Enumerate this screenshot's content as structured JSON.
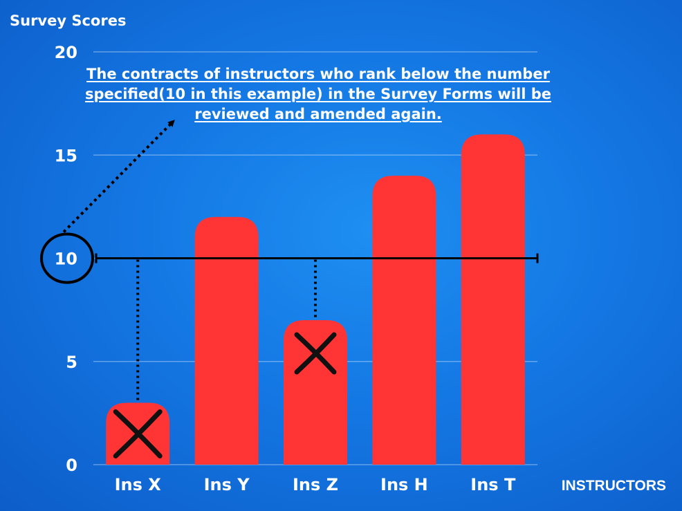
{
  "chart_data": {
    "type": "bar",
    "title": "Survey Scores",
    "xlabel": "INSTRUCTORS",
    "ylabel": "",
    "ylim": [
      0,
      20
    ],
    "yticks": [
      0,
      5,
      10,
      15,
      20
    ],
    "grid": true,
    "categories": [
      "Ins X",
      "Ins Y",
      "Ins Z",
      "Ins H",
      "Ins T"
    ],
    "values": [
      3,
      12,
      7,
      14,
      16
    ],
    "bar_color": "#ff3535",
    "threshold": {
      "value": 10,
      "color": "#000000"
    },
    "flagged": [
      "Ins X",
      "Ins Z"
    ],
    "annotation": "The contracts of instructors who rank below the number specified(10 in this example) in the Survey Forms will be reviewed and amended again."
  }
}
